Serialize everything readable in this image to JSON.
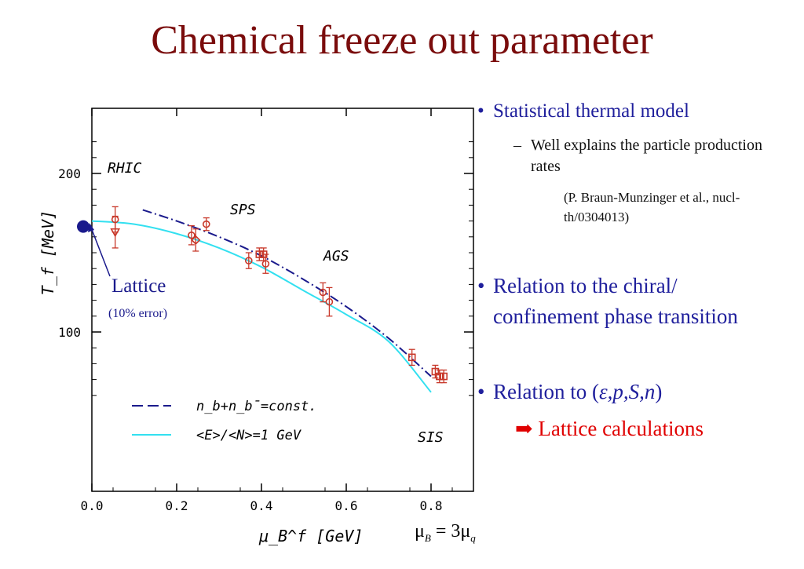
{
  "slide": {
    "title": "Chemical freeze out parameter",
    "bullets": {
      "b1": "Statistical thermal model",
      "b1_sub": "Well explains the particle production rates",
      "b1_ref": "(P. Braun-Munzinger et al., nucl-th/0304013)",
      "b2": "Relation to the chiral/ confinement phase transition",
      "b3_prefix": "Relation to (",
      "b3_vars": "ε,p,S,n",
      "b3_suffix": ")",
      "arrow_text": "Lattice calculations",
      "bullet_char": "•",
      "dash_char": "–"
    },
    "formula": {
      "lhs": "μ",
      "lhs_sub": "B",
      "eq": " = 3μ",
      "rhs_sub": "q"
    },
    "colors": {
      "title": "#7a0c0c",
      "bullet_text": "#1f1f9c",
      "accent": "#e00000"
    }
  },
  "chart_data": {
    "type": "scatter",
    "xlabel": "μ_B^f [GeV]",
    "ylabel": "T_f [MeV]",
    "xlim": [
      0.0,
      0.9
    ],
    "x_ticks": [
      "0.0",
      "0.2",
      "0.4",
      "0.6",
      "0.8"
    ],
    "y_ticks": [
      "100",
      "200"
    ],
    "region_labels": [
      "RHIC",
      "SPS",
      "AGS",
      "SIS"
    ],
    "legend": [
      {
        "label": "n_b+n_b̄=const.",
        "style": "dash-dot",
        "color": "#1a1a8c"
      },
      {
        "label": "<E>/<N>=1 GeV",
        "style": "solid",
        "color": "#33e0f0"
      }
    ],
    "lattice_annotation": {
      "label": "Lattice",
      "note": "(10% error)",
      "color": "#1a1a8c"
    },
    "curves": [
      {
        "label": "n_b+n_b̄=const.",
        "color": "#1a1a8c",
        "x": [
          0.12,
          0.2,
          0.3,
          0.4,
          0.5,
          0.6,
          0.7,
          0.8
        ],
        "y": [
          177,
          170,
          160,
          148,
          133,
          116,
          96,
          72
        ]
      },
      {
        "label": "<E>/<N>=1 GeV",
        "color": "#33e0f0",
        "x": [
          0.0,
          0.1,
          0.2,
          0.3,
          0.4,
          0.5,
          0.6,
          0.7,
          0.8
        ],
        "y": [
          170,
          168,
          162,
          153,
          141,
          126,
          111,
          94,
          62
        ]
      }
    ],
    "data_points": [
      {
        "x": 0.055,
        "y": 171,
        "err": 8,
        "marker": "circle"
      },
      {
        "x": 0.055,
        "y": 163,
        "err": 10,
        "marker": "triangle"
      },
      {
        "x": 0.235,
        "y": 161,
        "err": 6,
        "marker": "circle"
      },
      {
        "x": 0.245,
        "y": 158,
        "err": 7,
        "marker": "diamond"
      },
      {
        "x": 0.27,
        "y": 168,
        "err": 4,
        "marker": "circle"
      },
      {
        "x": 0.37,
        "y": 145,
        "err": 5,
        "marker": "circle"
      },
      {
        "x": 0.395,
        "y": 149,
        "err": 4,
        "marker": "square"
      },
      {
        "x": 0.405,
        "y": 149,
        "err": 4,
        "marker": "square"
      },
      {
        "x": 0.41,
        "y": 143,
        "err": 6,
        "marker": "circle"
      },
      {
        "x": 0.545,
        "y": 125,
        "err": 6,
        "marker": "circle"
      },
      {
        "x": 0.56,
        "y": 119,
        "err": 9,
        "marker": "circle"
      },
      {
        "x": 0.755,
        "y": 84,
        "err": 5,
        "marker": "square"
      },
      {
        "x": 0.81,
        "y": 75,
        "err": 4,
        "marker": "square"
      },
      {
        "x": 0.82,
        "y": 72,
        "err": 4,
        "marker": "square"
      },
      {
        "x": 0.83,
        "y": 72,
        "err": 4,
        "marker": "square"
      }
    ],
    "lattice_point": {
      "x": 0.0,
      "y": 170
    }
  }
}
